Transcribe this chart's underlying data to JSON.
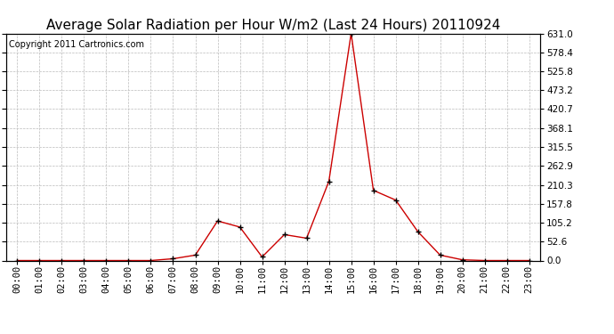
{
  "title": "Average Solar Radiation per Hour W/m2 (Last 24 Hours) 20110924",
  "copyright": "Copyright 2011 Cartronics.com",
  "hours": [
    "00:00",
    "01:00",
    "02:00",
    "03:00",
    "04:00",
    "05:00",
    "06:00",
    "07:00",
    "08:00",
    "09:00",
    "10:00",
    "11:00",
    "12:00",
    "13:00",
    "14:00",
    "15:00",
    "16:00",
    "17:00",
    "18:00",
    "19:00",
    "20:00",
    "21:00",
    "22:00",
    "23:00"
  ],
  "values": [
    0.0,
    0.0,
    0.0,
    0.0,
    0.0,
    0.0,
    0.0,
    5.0,
    15.0,
    110.0,
    93.0,
    10.0,
    72.0,
    62.0,
    220.0,
    631.0,
    195.0,
    168.0,
    80.0,
    15.0,
    2.0,
    0.0,
    0.0,
    0.0
  ],
  "ymin": 0.0,
  "ymax": 631.0,
  "yticks": [
    0.0,
    52.6,
    105.2,
    157.8,
    210.3,
    262.9,
    315.5,
    368.1,
    420.7,
    473.2,
    525.8,
    578.4,
    631.0
  ],
  "line_color": "#cc0000",
  "marker": "+",
  "marker_color": "#000000",
  "bg_color": "#ffffff",
  "grid_color": "#bbbbbb",
  "title_fontsize": 11,
  "copyright_fontsize": 7,
  "tick_fontsize": 7.5
}
